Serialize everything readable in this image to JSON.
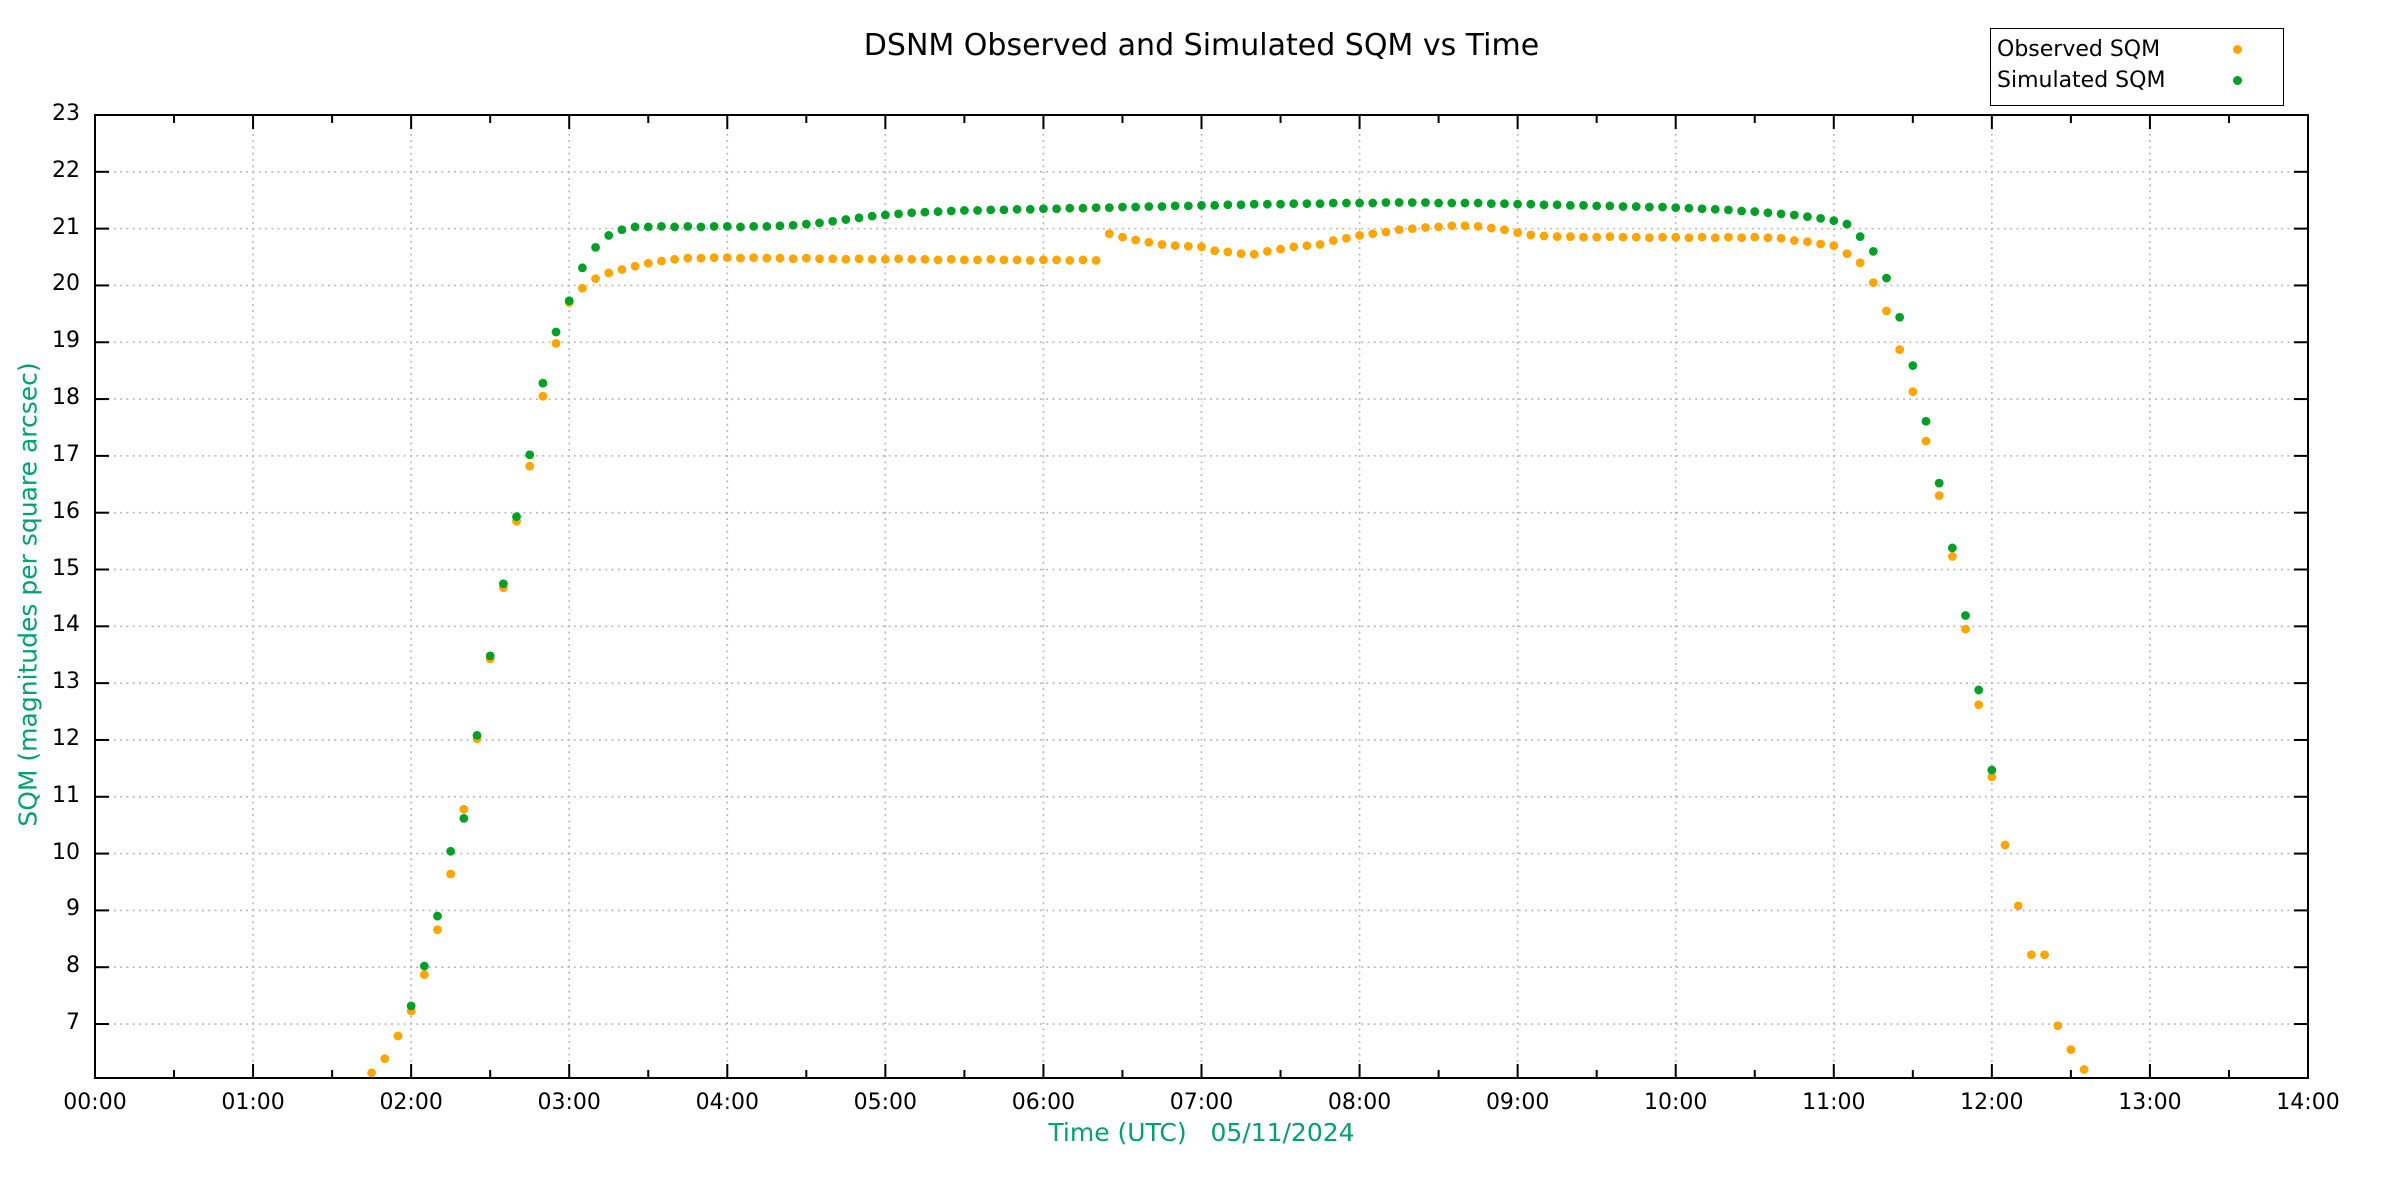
{
  "window": {
    "kind": "gnuplot-style chart image",
    "background": "#ffffff"
  },
  "title": "DSNM Observed and Simulated SQM vs Time",
  "legend": {
    "position": "top-right",
    "items": [
      {
        "label": "Observed SQM",
        "color": "#ffa500",
        "marker": "filled-circle"
      },
      {
        "label": "Simulated SQM",
        "color": "#00a028",
        "marker": "filled-circle"
      }
    ]
  },
  "colors": {
    "observed": "#ffa500",
    "simulated": "#00a028",
    "axis_label_green": "#00a070",
    "grid": "#b3b3b3",
    "axis": "#000000"
  },
  "chart_data": {
    "type": "scatter",
    "title": "DSNM Observed and Simulated SQM vs Time",
    "xlabel": "Time (UTC)   05/11/2024",
    "ylabel": "SQM (magnitudes per square arcsec)",
    "x_ticks": [
      "00:00",
      "01:00",
      "02:00",
      "03:00",
      "04:00",
      "05:00",
      "06:00",
      "07:00",
      "08:00",
      "09:00",
      "10:00",
      "11:00",
      "12:00",
      "13:00",
      "14:00"
    ],
    "x_minor_tick_minutes": 30,
    "y_ticks": [
      7,
      8,
      9,
      10,
      11,
      12,
      13,
      14,
      15,
      16,
      17,
      18,
      19,
      20,
      21,
      22,
      23
    ],
    "xlim_hours": [
      0,
      14
    ],
    "ylim": [
      6.05,
      23
    ],
    "grid": true,
    "legend_position": "top-right-above-plot",
    "series": [
      {
        "name": "Observed SQM",
        "color": "#ffa500",
        "points": [
          [
            "01:45",
            6.14
          ],
          [
            "01:50",
            6.39
          ],
          [
            "01:55",
            6.79
          ],
          [
            "02:00",
            7.23
          ],
          [
            "02:05",
            7.87
          ],
          [
            "02:10",
            8.66
          ],
          [
            "02:15",
            9.64
          ],
          [
            "02:20",
            10.78
          ],
          [
            "02:25",
            12.02
          ],
          [
            "02:30",
            13.43
          ],
          [
            "02:35",
            14.68
          ],
          [
            "02:40",
            15.85
          ],
          [
            "02:45",
            16.82
          ],
          [
            "02:50",
            18.05
          ],
          [
            "02:55",
            18.98
          ],
          [
            "03:00",
            19.7
          ],
          [
            "03:05",
            19.95
          ],
          [
            "03:10",
            20.12
          ],
          [
            "03:15",
            20.22
          ],
          [
            "03:20",
            20.28
          ],
          [
            "03:25",
            20.34
          ],
          [
            "03:30",
            20.39
          ],
          [
            "03:35",
            20.43
          ],
          [
            "03:40",
            20.46
          ],
          [
            "03:45",
            20.48
          ],
          [
            "03:50",
            20.48
          ],
          [
            "03:55",
            20.49
          ],
          [
            "04:00",
            20.49
          ],
          [
            "04:05",
            20.48
          ],
          [
            "04:10",
            20.49
          ],
          [
            "04:15",
            20.48
          ],
          [
            "04:20",
            20.48
          ],
          [
            "04:25",
            20.47
          ],
          [
            "04:30",
            20.48
          ],
          [
            "04:35",
            20.47
          ],
          [
            "04:40",
            20.47
          ],
          [
            "04:45",
            20.46
          ],
          [
            "04:50",
            20.47
          ],
          [
            "04:55",
            20.46
          ],
          [
            "05:00",
            20.46
          ],
          [
            "05:05",
            20.47
          ],
          [
            "05:10",
            20.46
          ],
          [
            "05:15",
            20.46
          ],
          [
            "05:20",
            20.45
          ],
          [
            "05:25",
            20.46
          ],
          [
            "05:30",
            20.45
          ],
          [
            "05:35",
            20.45
          ],
          [
            "05:40",
            20.46
          ],
          [
            "05:45",
            20.45
          ],
          [
            "05:50",
            20.45
          ],
          [
            "05:55",
            20.44
          ],
          [
            "06:00",
            20.45
          ],
          [
            "06:05",
            20.45
          ],
          [
            "06:10",
            20.44
          ],
          [
            "06:15",
            20.45
          ],
          [
            "06:20",
            20.44
          ],
          [
            "06:25",
            20.91
          ],
          [
            "06:30",
            20.85
          ],
          [
            "06:35",
            20.8
          ],
          [
            "06:40",
            20.76
          ],
          [
            "06:45",
            20.72
          ],
          [
            "06:50",
            20.7
          ],
          [
            "06:55",
            20.69
          ],
          [
            "07:00",
            20.68
          ],
          [
            "07:05",
            20.61
          ],
          [
            "07:10",
            20.59
          ],
          [
            "07:15",
            20.56
          ],
          [
            "07:20",
            20.55
          ],
          [
            "07:25",
            20.6
          ],
          [
            "07:30",
            20.64
          ],
          [
            "07:35",
            20.68
          ],
          [
            "07:40",
            20.7
          ],
          [
            "07:45",
            20.72
          ],
          [
            "07:50",
            20.79
          ],
          [
            "07:55",
            20.83
          ],
          [
            "08:00",
            20.88
          ],
          [
            "08:05",
            20.91
          ],
          [
            "08:10",
            20.94
          ],
          [
            "08:15",
            20.98
          ],
          [
            "08:20",
            21.0
          ],
          [
            "08:25",
            21.02
          ],
          [
            "08:30",
            21.03
          ],
          [
            "08:35",
            21.05
          ],
          [
            "08:40",
            21.05
          ],
          [
            "08:45",
            21.04
          ],
          [
            "08:50",
            21.01
          ],
          [
            "08:55",
            20.98
          ],
          [
            "09:00",
            20.93
          ],
          [
            "09:05",
            20.89
          ],
          [
            "09:10",
            20.87
          ],
          [
            "09:15",
            20.86
          ],
          [
            "09:20",
            20.86
          ],
          [
            "09:25",
            20.85
          ],
          [
            "09:30",
            20.85
          ],
          [
            "09:35",
            20.86
          ],
          [
            "09:40",
            20.85
          ],
          [
            "09:45",
            20.85
          ],
          [
            "09:50",
            20.84
          ],
          [
            "09:55",
            20.85
          ],
          [
            "10:00",
            20.85
          ],
          [
            "10:05",
            20.84
          ],
          [
            "10:10",
            20.85
          ],
          [
            "10:15",
            20.84
          ],
          [
            "10:20",
            20.85
          ],
          [
            "10:25",
            20.84
          ],
          [
            "10:30",
            20.85
          ],
          [
            "10:35",
            20.84
          ],
          [
            "10:40",
            20.83
          ],
          [
            "10:45",
            20.79
          ],
          [
            "10:50",
            20.77
          ],
          [
            "10:55",
            20.73
          ],
          [
            "11:00",
            20.7
          ],
          [
            "11:05",
            20.56
          ],
          [
            "11:10",
            20.4
          ],
          [
            "11:15",
            20.05
          ],
          [
            "11:20",
            19.55
          ],
          [
            "11:25",
            18.87
          ],
          [
            "11:30",
            18.13
          ],
          [
            "11:35",
            17.26
          ],
          [
            "11:40",
            16.3
          ],
          [
            "11:45",
            15.23
          ],
          [
            "11:50",
            13.95
          ],
          [
            "11:55",
            12.62
          ],
          [
            "12:00",
            11.35
          ],
          [
            "12:05",
            10.15
          ],
          [
            "12:10",
            9.08
          ],
          [
            "12:15",
            8.22
          ],
          [
            "12:20",
            8.22
          ],
          [
            "12:25",
            6.97
          ],
          [
            "12:30",
            6.55
          ],
          [
            "12:35",
            6.2
          ]
        ]
      },
      {
        "name": "Simulated SQM",
        "color": "#00a028",
        "points": [
          [
            "02:00",
            7.32
          ],
          [
            "02:05",
            8.02
          ],
          [
            "02:10",
            8.9
          ],
          [
            "02:15",
            10.04
          ],
          [
            "02:20",
            10.62
          ],
          [
            "02:25",
            12.08
          ],
          [
            "02:30",
            13.48
          ],
          [
            "02:35",
            14.75
          ],
          [
            "02:40",
            15.93
          ],
          [
            "02:45",
            17.02
          ],
          [
            "02:50",
            18.28
          ],
          [
            "02:55",
            19.18
          ],
          [
            "03:00",
            19.73
          ],
          [
            "03:05",
            20.31
          ],
          [
            "03:10",
            20.67
          ],
          [
            "03:15",
            20.88
          ],
          [
            "03:20",
            20.98
          ],
          [
            "03:25",
            21.03
          ],
          [
            "03:30",
            21.03
          ],
          [
            "03:35",
            21.04
          ],
          [
            "03:40",
            21.03
          ],
          [
            "03:45",
            21.04
          ],
          [
            "03:50",
            21.03
          ],
          [
            "03:55",
            21.04
          ],
          [
            "04:00",
            21.04
          ],
          [
            "04:05",
            21.03
          ],
          [
            "04:10",
            21.04
          ],
          [
            "04:15",
            21.04
          ],
          [
            "04:20",
            21.05
          ],
          [
            "04:25",
            21.06
          ],
          [
            "04:30",
            21.08
          ],
          [
            "04:35",
            21.1
          ],
          [
            "04:40",
            21.13
          ],
          [
            "04:45",
            21.16
          ],
          [
            "04:50",
            21.19
          ],
          [
            "04:55",
            21.22
          ],
          [
            "05:00",
            21.24
          ],
          [
            "05:05",
            21.26
          ],
          [
            "05:10",
            21.28
          ],
          [
            "05:15",
            21.29
          ],
          [
            "05:20",
            21.3
          ],
          [
            "05:25",
            21.31
          ],
          [
            "05:30",
            21.32
          ],
          [
            "05:35",
            21.32
          ],
          [
            "05:40",
            21.33
          ],
          [
            "05:45",
            21.33
          ],
          [
            "05:50",
            21.34
          ],
          [
            "05:55",
            21.34
          ],
          [
            "06:00",
            21.35
          ],
          [
            "06:05",
            21.35
          ],
          [
            "06:10",
            21.36
          ],
          [
            "06:15",
            21.36
          ],
          [
            "06:20",
            21.37
          ],
          [
            "06:25",
            21.37
          ],
          [
            "06:30",
            21.38
          ],
          [
            "06:35",
            21.38
          ],
          [
            "06:40",
            21.39
          ],
          [
            "06:45",
            21.39
          ],
          [
            "06:50",
            21.4
          ],
          [
            "06:55",
            21.4
          ],
          [
            "07:00",
            21.41
          ],
          [
            "07:05",
            21.41
          ],
          [
            "07:10",
            21.42
          ],
          [
            "07:15",
            21.42
          ],
          [
            "07:20",
            21.43
          ],
          [
            "07:25",
            21.43
          ],
          [
            "07:30",
            21.43
          ],
          [
            "07:35",
            21.44
          ],
          [
            "07:40",
            21.44
          ],
          [
            "07:45",
            21.44
          ],
          [
            "07:50",
            21.45
          ],
          [
            "07:55",
            21.45
          ],
          [
            "08:00",
            21.45
          ],
          [
            "08:05",
            21.45
          ],
          [
            "08:10",
            21.46
          ],
          [
            "08:15",
            21.46
          ],
          [
            "08:20",
            21.46
          ],
          [
            "08:25",
            21.46
          ],
          [
            "08:30",
            21.45
          ],
          [
            "08:35",
            21.45
          ],
          [
            "08:40",
            21.45
          ],
          [
            "08:45",
            21.45
          ],
          [
            "08:50",
            21.44
          ],
          [
            "08:55",
            21.44
          ],
          [
            "09:00",
            21.43
          ],
          [
            "09:05",
            21.43
          ],
          [
            "09:10",
            21.42
          ],
          [
            "09:15",
            21.42
          ],
          [
            "09:20",
            21.41
          ],
          [
            "09:25",
            21.41
          ],
          [
            "09:30",
            21.4
          ],
          [
            "09:35",
            21.4
          ],
          [
            "09:40",
            21.39
          ],
          [
            "09:45",
            21.39
          ],
          [
            "09:50",
            21.38
          ],
          [
            "09:55",
            21.38
          ],
          [
            "10:00",
            21.37
          ],
          [
            "10:05",
            21.36
          ],
          [
            "10:10",
            21.35
          ],
          [
            "10:15",
            21.34
          ],
          [
            "10:20",
            21.33
          ],
          [
            "10:25",
            21.31
          ],
          [
            "10:30",
            21.3
          ],
          [
            "10:35",
            21.28
          ],
          [
            "10:40",
            21.26
          ],
          [
            "10:45",
            21.24
          ],
          [
            "10:50",
            21.21
          ],
          [
            "10:55",
            21.18
          ],
          [
            "11:00",
            21.14
          ],
          [
            "11:05",
            21.08
          ],
          [
            "11:10",
            20.86
          ],
          [
            "11:15",
            20.6
          ],
          [
            "11:20",
            20.13
          ],
          [
            "11:25",
            19.44
          ],
          [
            "11:30",
            18.59
          ],
          [
            "11:35",
            17.61
          ],
          [
            "11:40",
            16.52
          ],
          [
            "11:45",
            15.38
          ],
          [
            "11:50",
            14.19
          ],
          [
            "11:55",
            12.88
          ],
          [
            "12:00",
            11.47
          ]
        ]
      }
    ]
  }
}
